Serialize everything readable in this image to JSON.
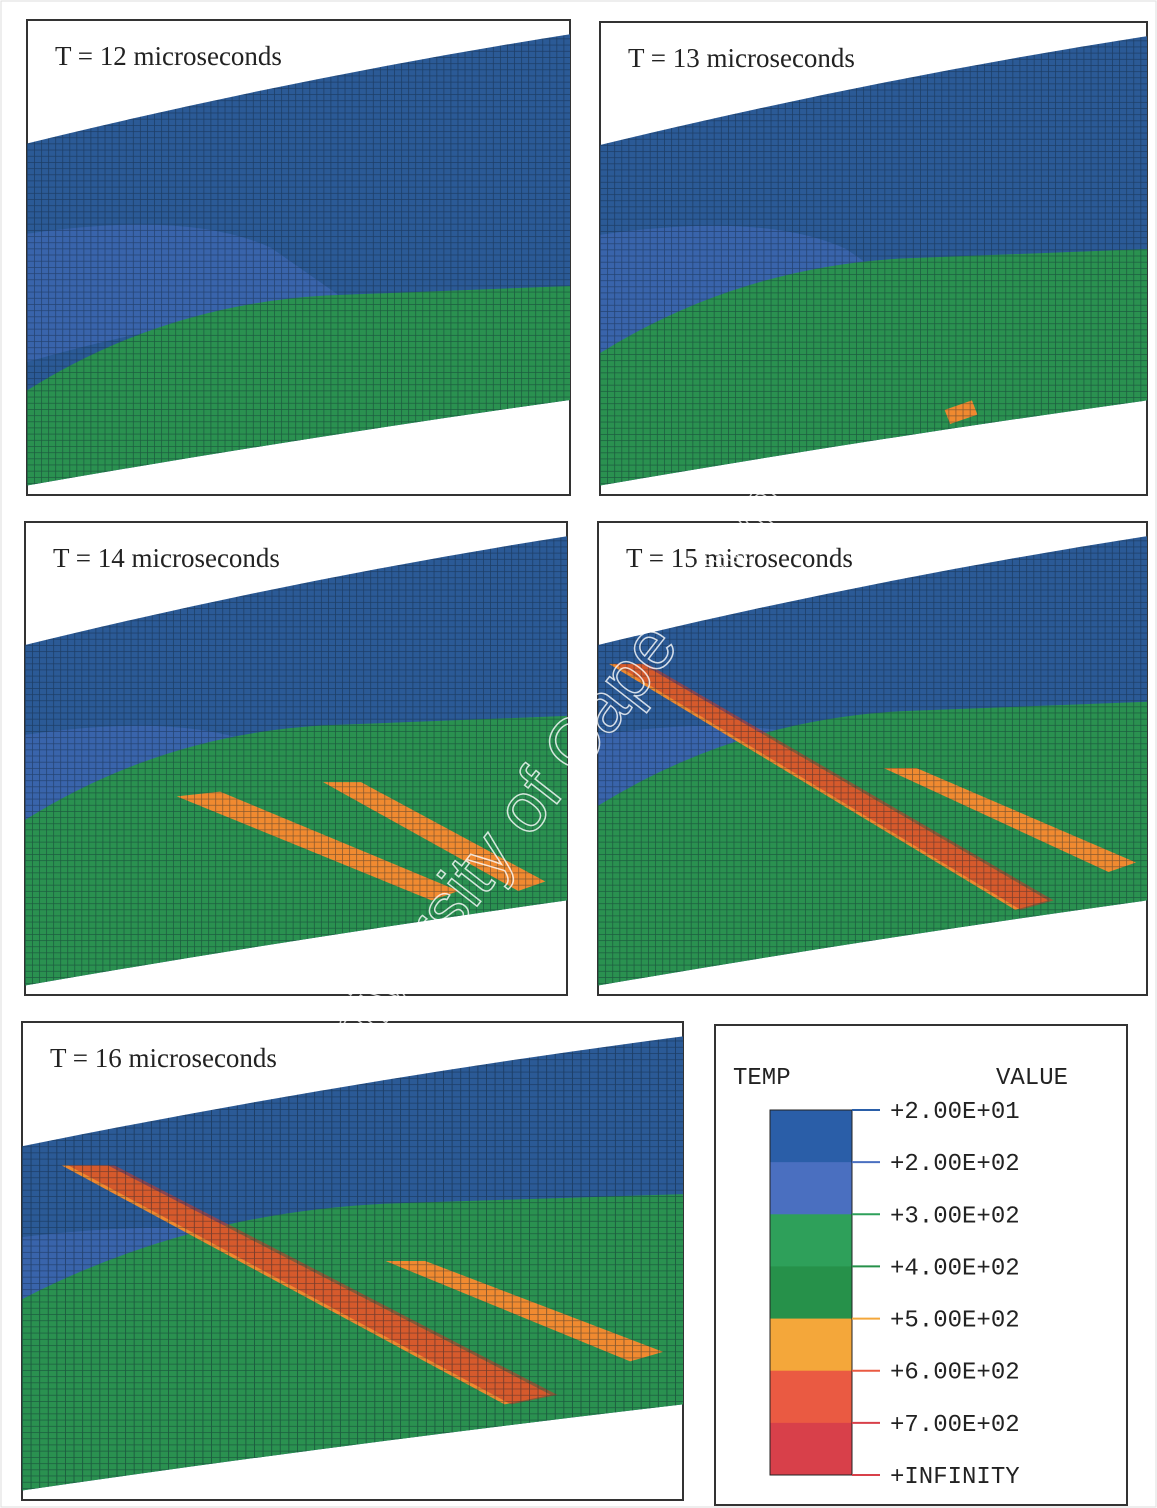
{
  "panels": [
    {
      "label": "T = 12 microseconds"
    },
    {
      "label": "T = 13 microseconds"
    },
    {
      "label": "T = 14 microseconds"
    },
    {
      "label": "T = 15 microseconds"
    },
    {
      "label": "T = 16 microseconds"
    }
  ],
  "legend": {
    "title": "TEMP",
    "value_header": "VALUE",
    "labels": [
      "+2.00E+01",
      "+2.00E+02",
      "+3.00E+02",
      "+4.00E+02",
      "+5.00E+02",
      "+6.00E+02",
      "+7.00E+02",
      "+INFINITY"
    ],
    "colors": [
      "#2a5ea8",
      "#4a6fc0",
      "#2ea05a",
      "#26914a",
      "#f4a73a",
      "#ea5a42",
      "#d8404a"
    ]
  },
  "watermark": "University of Cape Town"
}
